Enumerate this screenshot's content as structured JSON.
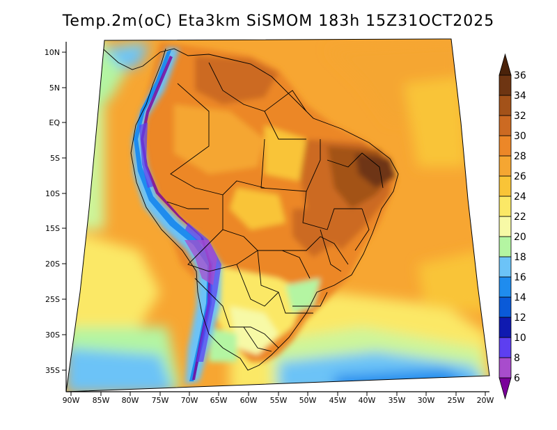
{
  "title": "Temp.2m(oC) Eta3km SiSMOM 183h 15Z31OCT2025",
  "map": {
    "lat_ticks": [
      "10N",
      "5N",
      "EQ",
      "5S",
      "10S",
      "15S",
      "20S",
      "25S",
      "30S",
      "35S"
    ],
    "lon_ticks": [
      "90W",
      "85W",
      "80W",
      "75W",
      "70W",
      "65W",
      "60W",
      "55W",
      "50W",
      "45W",
      "40W",
      "35W",
      "30W",
      "25W",
      "20W"
    ]
  },
  "colorbar": {
    "labels": [
      "6",
      "8",
      "10",
      "12",
      "14",
      "16",
      "18",
      "20",
      "22",
      "24",
      "26",
      "28",
      "30",
      "32",
      "34",
      "36"
    ],
    "colors": [
      "#7a009a",
      "#a84ccc",
      "#5d3ff0",
      "#0f1ab0",
      "#0a5ad8",
      "#1f8cee",
      "#6cc3f7",
      "#b4f5a2",
      "#f7f9a6",
      "#fbe866",
      "#f9c437",
      "#f5a632",
      "#ec8728",
      "#cc6a22",
      "#a35219",
      "#6e3512",
      "#4a220a"
    ]
  }
}
